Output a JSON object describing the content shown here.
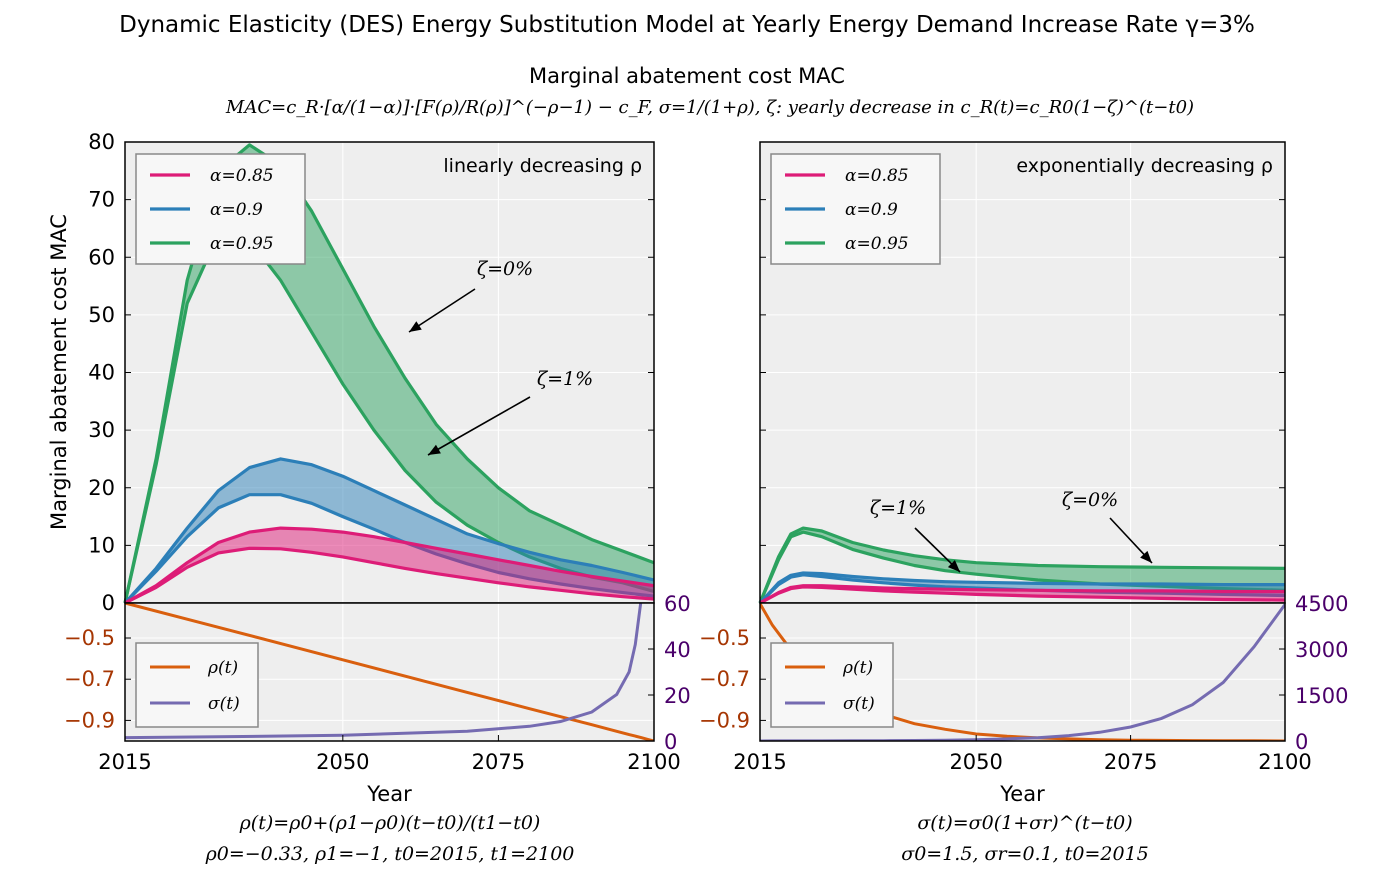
{
  "figure": {
    "title": "Dynamic Elasticity (DES) Energy Substitution Model at Yearly Energy Demand Increase Rate γ=3%",
    "subtitle": "Marginal abatement cost MAC",
    "formula": "MAC=c_R·[α/(1−α)]·[F(ρ)/R(ρ)]^(−ρ−1) − c_F,   σ=1/(1+ρ),   ζ: yearly decrease in c_R(t)=c_R0(1−ζ)^(t−t0)",
    "left_caption_1": "ρ(t)=ρ0+(ρ1−ρ0)(t−t0)/(t1−t0)",
    "left_caption_2": "ρ0=−0.33,  ρ1=−1,  t0=2015,  t1=2100",
    "right_caption_1": "σ(t)=σ0(1+σr)^(t−t0)",
    "right_caption_2": "σ0=1.5,  σr=0.1,  t0=2015"
  },
  "colors": {
    "alpha_085": "#dd1c77",
    "alpha_09": "#2c7fb8",
    "alpha_095": "#2ca25f",
    "rho": "#d95f0e",
    "sigma": "#756bb1",
    "rho_axis_text": "#a63603",
    "sigma_axis_text": "#4a006a",
    "plot_bg": "#eeeeee",
    "grid": "#ffffff"
  },
  "chart_data": [
    {
      "panel": "left-top",
      "type": "area",
      "corner_label": "linearly decreasing ρ",
      "ylabel": "Marginal abatement cost MAC",
      "xlim": [
        2015,
        2100
      ],
      "ylim": [
        0,
        80
      ],
      "yticks": [
        0,
        10,
        20,
        30,
        40,
        50,
        60,
        70,
        80
      ],
      "grid": true,
      "legend": {
        "placement": "top-left",
        "entries": [
          "α=0.85",
          "α=0.9",
          "α=0.95"
        ]
      },
      "annotations": [
        "ζ=0%",
        "ζ=1%"
      ],
      "x": [
        2015,
        2020,
        2025,
        2030,
        2035,
        2040,
        2045,
        2050,
        2055,
        2060,
        2065,
        2070,
        2075,
        2080,
        2085,
        2090,
        2095,
        2100
      ],
      "series": [
        {
          "name": "α=0.95",
          "zeta": "0%",
          "values": [
            0,
            25,
            56,
            75,
            79.5,
            76,
            68,
            58,
            48,
            39,
            31,
            25,
            20,
            16,
            13.5,
            11,
            9,
            7
          ]
        },
        {
          "name": "α=0.95",
          "zeta": "1%",
          "values": [
            0,
            24,
            52,
            64,
            63,
            56,
            47,
            38,
            30,
            23,
            17.5,
            13.5,
            10.5,
            8,
            6,
            4.5,
            3.5,
            2
          ]
        },
        {
          "name": "α=0.9",
          "zeta": "0%",
          "values": [
            0,
            6,
            13,
            19.5,
            23.5,
            25,
            24,
            22,
            19.5,
            17,
            14.5,
            12,
            10.3,
            8.8,
            7.5,
            6.5,
            5.3,
            4
          ]
        },
        {
          "name": "α=0.9",
          "zeta": "1%",
          "values": [
            0,
            5.5,
            11.5,
            16.5,
            18.8,
            18.8,
            17.3,
            15,
            12.8,
            10.5,
            8.5,
            6.8,
            5.3,
            4.2,
            3.3,
            2.5,
            1.8,
            1.2
          ]
        },
        {
          "name": "α=0.85",
          "zeta": "0%",
          "values": [
            0,
            3,
            7,
            10.5,
            12.3,
            13,
            12.8,
            12.3,
            11.5,
            10.5,
            9.5,
            8.5,
            7.5,
            6.5,
            5.5,
            4.6,
            3.8,
            3
          ]
        },
        {
          "name": "α=0.85",
          "zeta": "1%",
          "values": [
            0,
            2.7,
            6.2,
            8.7,
            9.5,
            9.4,
            8.8,
            8,
            7,
            6,
            5.1,
            4.3,
            3.5,
            2.8,
            2.2,
            1.6,
            1.1,
            0.7
          ]
        }
      ]
    },
    {
      "panel": "right-top",
      "type": "area",
      "corner_label": "exponentially decreasing ρ",
      "xlim": [
        2015,
        2100
      ],
      "ylim": [
        0,
        80
      ],
      "grid": true,
      "legend": {
        "placement": "top-left",
        "entries": [
          "α=0.85",
          "α=0.9",
          "α=0.95"
        ]
      },
      "annotations": [
        "ζ=1%",
        "ζ=0%"
      ],
      "x": [
        2015,
        2018,
        2020,
        2022,
        2025,
        2030,
        2035,
        2040,
        2045,
        2050,
        2060,
        2070,
        2080,
        2090,
        2100
      ],
      "series": [
        {
          "name": "α=0.95",
          "zeta": "0%",
          "values": [
            0,
            8,
            12,
            13,
            12.5,
            10.5,
            9.2,
            8.2,
            7.5,
            7,
            6.5,
            6.3,
            6.2,
            6.1,
            6
          ]
        },
        {
          "name": "α=0.95",
          "zeta": "1%",
          "values": [
            0,
            7.5,
            11.5,
            12.3,
            11.5,
            9.3,
            7.8,
            6.5,
            5.6,
            5,
            4,
            3.3,
            2.9,
            2.5,
            2.2
          ]
        },
        {
          "name": "α=0.9",
          "zeta": "0%",
          "values": [
            0,
            3.5,
            4.8,
            5.2,
            5.1,
            4.6,
            4.2,
            3.9,
            3.7,
            3.6,
            3.4,
            3.3,
            3.3,
            3.2,
            3.2
          ]
        },
        {
          "name": "α=0.9",
          "zeta": "1%",
          "values": [
            0,
            3.2,
            4.5,
            4.9,
            4.6,
            4,
            3.5,
            3.1,
            2.8,
            2.6,
            2.2,
            1.9,
            1.7,
            1.5,
            1.3
          ]
        },
        {
          "name": "α=0.85",
          "zeta": "0%",
          "values": [
            0,
            1.8,
            2.7,
            3,
            3,
            2.8,
            2.6,
            2.5,
            2.4,
            2.3,
            2.2,
            2.1,
            2.1,
            2,
            2
          ]
        },
        {
          "name": "α=0.85",
          "zeta": "1%",
          "values": [
            0,
            1.7,
            2.5,
            2.8,
            2.7,
            2.4,
            2.1,
            1.9,
            1.7,
            1.5,
            1.2,
            1,
            0.8,
            0.6,
            0.5
          ]
        }
      ]
    },
    {
      "panel": "left-bottom",
      "type": "line",
      "xlabel": "Year",
      "xlim": [
        2015,
        2100
      ],
      "xticks": [
        2015,
        2050,
        2075,
        2100
      ],
      "ylim_rho": [
        -1,
        -0.33
      ],
      "yticks_rho": [
        -0.5,
        -0.7,
        -0.9
      ],
      "ytick_labels_rho": [
        "−0.5",
        "−0.7",
        "−0.9"
      ],
      "ylim_sigma": [
        0,
        60
      ],
      "yticks_sigma": [
        0,
        20,
        40,
        60
      ],
      "legend": {
        "placement": "bottom-left",
        "entries": [
          "ρ(t)",
          "σ(t)"
        ]
      },
      "x": [
        2015,
        2030,
        2050,
        2070,
        2080,
        2085,
        2090,
        2094,
        2096,
        2097,
        2098,
        2099,
        2100
      ],
      "series": [
        {
          "name": "ρ(t)",
          "axis": "left",
          "values": [
            -0.33,
            -0.448,
            -0.606,
            -0.764,
            -0.843,
            -0.882,
            -0.921,
            -0.953,
            -0.969,
            -0.976,
            -0.984,
            -0.992,
            -1.0
          ]
        },
        {
          "name": "σ(t)",
          "axis": "right",
          "values": [
            1.49,
            1.81,
            2.52,
            4.27,
            6.39,
            8.5,
            12.6,
            20.2,
            30.0,
            42.0,
            63.0,
            125,
            4000
          ]
        }
      ]
    },
    {
      "panel": "right-bottom",
      "type": "line",
      "xlabel": "Year",
      "xlim": [
        2015,
        2100
      ],
      "xticks": [
        2015,
        2050,
        2075,
        2100
      ],
      "ylim_rho": [
        -1,
        -0.33
      ],
      "yticks_rho": [
        -0.5,
        -0.7,
        -0.9
      ],
      "ytick_labels_rho": [
        "−0.5",
        "−0.7",
        "−0.9"
      ],
      "ylim_sigma": [
        0,
        4500
      ],
      "yticks_sigma": [
        0,
        1500,
        3000,
        4500
      ],
      "legend": {
        "placement": "bottom-left",
        "entries": [
          "ρ(t)",
          "σ(t)"
        ]
      },
      "x": [
        2015,
        2017,
        2020,
        2025,
        2030,
        2035,
        2040,
        2045,
        2050,
        2055,
        2060,
        2065,
        2070,
        2075,
        2080,
        2085,
        2090,
        2095,
        2100
      ],
      "series": [
        {
          "name": "ρ(t)",
          "axis": "left",
          "values": [
            -0.333,
            -0.438,
            -0.557,
            -0.711,
            -0.833,
            -0.871,
            -0.916,
            -0.943,
            -0.966,
            -0.977,
            -0.985,
            -0.99,
            -0.994,
            -0.996,
            -0.997,
            -0.998,
            -0.999,
            -0.999,
            -1.0
          ]
        },
        {
          "name": "σ(t)",
          "axis": "right",
          "values": [
            1.5,
            1.8,
            2.4,
            3.9,
            6.3,
            10.1,
            16.2,
            26.2,
            42.2,
            67.9,
            109,
            176,
            284,
            457,
            736,
            1185,
            1909,
            3075,
            4450
          ]
        }
      ]
    }
  ]
}
